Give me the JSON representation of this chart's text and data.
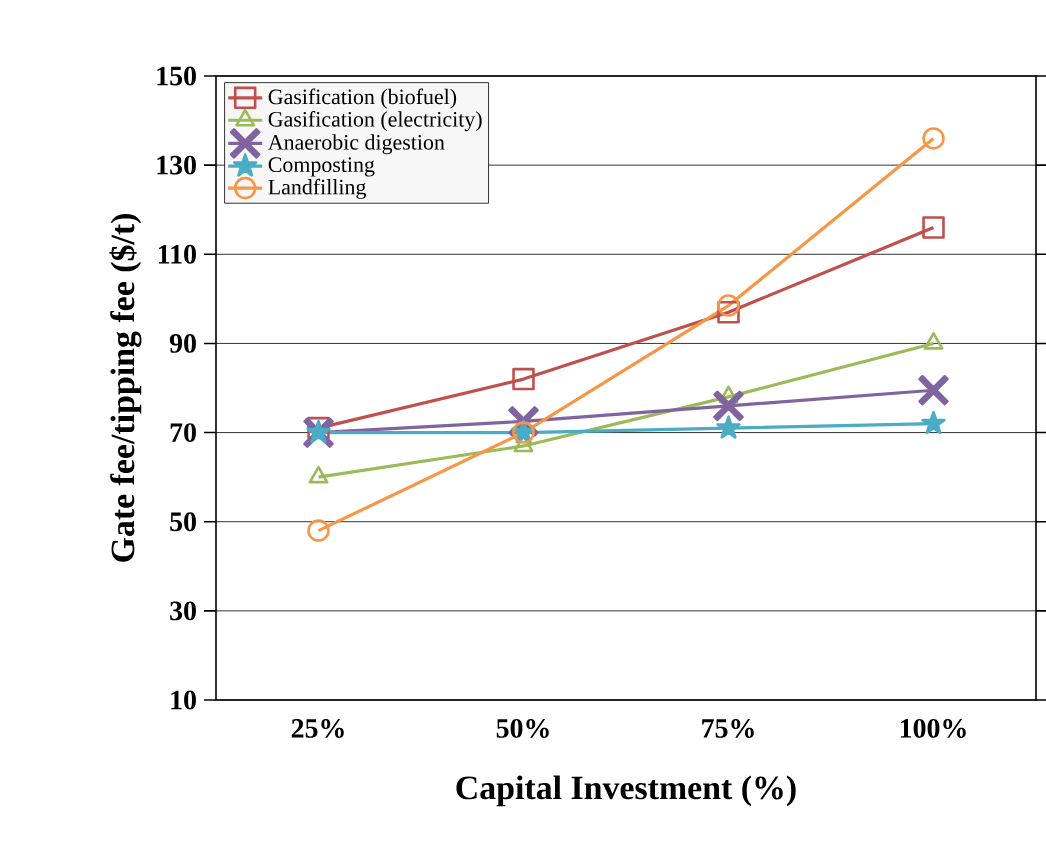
{
  "chart_data": {
    "type": "line",
    "xlabel": "Capital Investment (%)",
    "ylabel": "Gate fee/tipping fee ($/t)",
    "categories": [
      "25%",
      "50%",
      "75%",
      "100%"
    ],
    "ylim": [
      10,
      150
    ],
    "yticks": [
      10,
      30,
      50,
      70,
      90,
      110,
      130,
      150
    ],
    "grid": "y",
    "legend": "top left",
    "series": [
      {
        "name": "Gasification (biofuel)",
        "color": "#c0504d",
        "marker": "square",
        "values": [
          71,
          82,
          97,
          116
        ]
      },
      {
        "name": "Gasification (electricity)",
        "color": "#9bbb59",
        "marker": "triangle",
        "values": [
          60,
          67,
          78,
          90
        ]
      },
      {
        "name": "Anaerobic digestion",
        "color": "#8064a2",
        "marker": "cross",
        "values": [
          70,
          72.5,
          76,
          79.5
        ]
      },
      {
        "name": "Composting",
        "color": "#4bacc6",
        "marker": "star",
        "values": [
          70,
          70,
          71,
          72
        ]
      },
      {
        "name": "Landfilling",
        "color": "#f79646",
        "marker": "circle",
        "values": [
          48,
          70,
          98.5,
          136
        ]
      }
    ]
  }
}
